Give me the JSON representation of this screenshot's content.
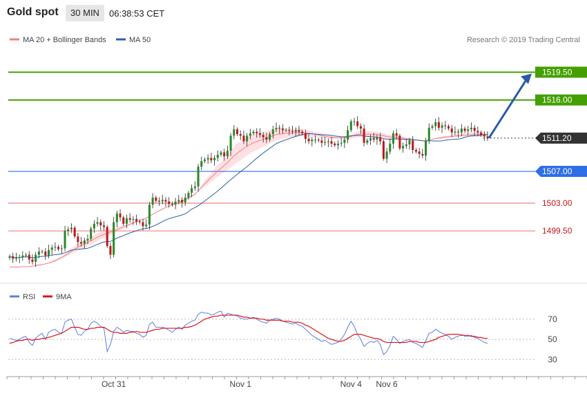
{
  "header": {
    "title": "Gold spot",
    "timeframe": "30 MIN",
    "timestamp": "06:38:53 CET"
  },
  "legend": {
    "ma20": "MA 20 + Bollinger Bands",
    "ma50": "MA 50",
    "copyright": "Research © 2019 Trading Central",
    "ma20_color": "#f08080",
    "ma50_color": "#2a5fa8"
  },
  "rsi_legend": {
    "rsi": "RSI",
    "ma": "9MA",
    "rsi_color": "#5b7fe0",
    "ma_color": "#dd1111"
  },
  "colors": {
    "resistance_green": "#44a000",
    "support_red": "#f08080",
    "pivot_blue": "#2e6ee6",
    "last_price_bg": "#333333",
    "bull": "#2a8a2a",
    "bear": "#c01818",
    "band": "#ffe0e4",
    "arrow": "#2a5aa8"
  },
  "chart_data": {
    "type": "candlestick",
    "y_range": [
      1492.9,
      1523.2
    ],
    "x_labels": [
      "Oct 31",
      "Nov 1",
      "Nov 4",
      "Nov 6"
    ],
    "x_label_index": [
      32,
      71,
      105,
      116
    ],
    "levels": [
      {
        "value": 1519.5,
        "label": "1519.50",
        "kind": "resistance"
      },
      {
        "value": 1516.0,
        "label": "1516.00",
        "kind": "resistance"
      },
      {
        "value": 1511.2,
        "label": "1511.20",
        "kind": "last"
      },
      {
        "value": 1507.0,
        "label": "1507.00",
        "kind": "pivot"
      },
      {
        "value": 1503.0,
        "label": "1503.00",
        "kind": "support"
      },
      {
        "value": 1499.5,
        "label": "1499.50",
        "kind": "support"
      }
    ],
    "close": [
      1496.3,
      1496.0,
      1496.1,
      1496.2,
      1496.4,
      1496.5,
      1495.9,
      1495.6,
      1496.5,
      1496.9,
      1496.9,
      1496.4,
      1497.1,
      1497.4,
      1497.5,
      1497.2,
      1497.3,
      1499.5,
      1499.7,
      1499.9,
      1498.8,
      1498.1,
      1497.9,
      1498.3,
      1498.5,
      1499.8,
      1500.4,
      1500.6,
      1500.2,
      1500.0,
      1497.6,
      1496.5,
      1500.6,
      1501.7,
      1501.2,
      1500.4,
      1501.1,
      1500.9,
      1501.0,
      1500.7,
      1500.6,
      1500.1,
      1500.3,
      1502.8,
      1503.7,
      1503.3,
      1503.2,
      1503.4,
      1503.2,
      1502.9,
      1502.8,
      1503.2,
      1503.4,
      1503.1,
      1503.7,
      1504.3,
      1504.9,
      1505.1,
      1507.6,
      1508.3,
      1508.5,
      1508.7,
      1508.4,
      1508.7,
      1509.1,
      1509.4,
      1508.9,
      1509.6,
      1511.5,
      1512.3,
      1511.7,
      1511.5,
      1510.8,
      1511.5,
      1511.8,
      1512.0,
      1511.8,
      1511.6,
      1511.3,
      1511.0,
      1511.7,
      1512.3,
      1512.5,
      1512.4,
      1512.2,
      1512.2,
      1512.1,
      1512.0,
      1512.2,
      1512.0,
      1511.8,
      1511.1,
      1510.8,
      1511.0,
      1511.0,
      1510.9,
      1510.6,
      1510.7,
      1510.8,
      1510.5,
      1510.3,
      1510.5,
      1510.6,
      1511.0,
      1512.2,
      1513.3,
      1513.3,
      1512.7,
      1512.4,
      1510.6,
      1510.9,
      1511.2,
      1511.0,
      1511.3,
      1510.8,
      1508.6,
      1509.5,
      1510.5,
      1511.8,
      1511.5,
      1509.9,
      1510.2,
      1510.4,
      1510.9,
      1509.7,
      1509.5,
      1509.2,
      1509.0,
      1510.9,
      1512.5,
      1512.7,
      1513.2,
      1512.5,
      1512.8,
      1512.7,
      1512.4,
      1511.9,
      1512.0,
      1511.9,
      1512.4,
      1512.1,
      1512.3,
      1512.5,
      1512.1,
      1511.9,
      1511.6,
      1511.4,
      1511.2
    ],
    "bb_upper": [
      1494.9,
      1494.9,
      1494.9,
      1494.9,
      1495.0,
      1495.0,
      1495.0,
      1495.1,
      1495.2,
      1495.3,
      1495.3,
      1495.4,
      1495.5,
      1495.7,
      1495.9,
      1496.1,
      1496.3,
      1496.6,
      1496.9,
      1497.3,
      1497.6,
      1497.9,
      1498.1,
      1498.3,
      1498.5,
      1498.7,
      1499.0,
      1499.2,
      1499.4,
      1499.5,
      1499.6,
      1499.7,
      1499.8,
      1499.9,
      1500.1,
      1500.2,
      1500.3,
      1500.5,
      1500.6,
      1500.7,
      1500.8,
      1500.9,
      1501.0,
      1501.3,
      1501.6,
      1501.9,
      1502.1,
      1502.3,
      1502.5,
      1502.6,
      1502.8,
      1502.9,
      1503.0,
      1503.1,
      1503.3,
      1503.5,
      1503.8,
      1504.0,
      1504.6,
      1505.2,
      1505.8,
      1506.3,
      1506.8,
      1507.3,
      1507.8,
      1508.2,
      1508.6,
      1509.0,
      1509.6,
      1510.1,
      1510.5,
      1510.8,
      1511.1,
      1511.3,
      1511.5,
      1511.7,
      1511.8,
      1511.9,
      1512.0,
      1512.1,
      1512.2,
      1512.3,
      1512.4,
      1512.4,
      1512.4,
      1512.4,
      1512.4,
      1512.4,
      1512.4,
      1512.4,
      1512.3,
      1512.3,
      1512.2,
      1512.1,
      1512.0,
      1511.9,
      1511.8,
      1511.7,
      1511.6,
      1511.5,
      1511.4,
      1511.4,
      1511.4,
      1511.4,
      1511.5,
      1511.7,
      1511.9,
      1512.0,
      1512.1,
      1512.1,
      1512.1,
      1512.1,
      1512.0,
      1512.0,
      1511.9,
      1511.8,
      1511.7,
      1511.6,
      1511.6,
      1511.6,
      1511.5,
      1511.4,
      1511.3,
      1511.2,
      1511.1,
      1511.0,
      1510.9,
      1510.8,
      1510.8,
      1510.9,
      1511.1,
      1511.2,
      1511.3,
      1511.4,
      1511.5,
      1511.5,
      1511.6,
      1511.6,
      1511.7,
      1511.8,
      1511.8,
      1511.8,
      1511.9,
      1511.9,
      1511.9,
      1511.9,
      1511.9,
      1511.9
    ],
    "bb_lower": [
      1495.0,
      1495.0,
      1495.0,
      1495.0,
      1495.0,
      1495.0,
      1495.0,
      1495.0,
      1495.1,
      1495.1,
      1495.2,
      1495.3,
      1495.4,
      1495.5,
      1495.6,
      1495.8,
      1496.0,
      1496.2,
      1496.4,
      1496.6,
      1496.8,
      1497.0,
      1497.2,
      1497.4,
      1497.6,
      1497.8,
      1498.0,
      1498.2,
      1498.4,
      1498.6,
      1498.8,
      1499.0,
      1499.2,
      1499.4,
      1499.6,
      1499.8,
      1500.0,
      1500.2,
      1500.4,
      1500.6,
      1500.8,
      1501.0,
      1501.2,
      1501.4,
      1501.6,
      1501.8,
      1502.0,
      1502.2,
      1502.4,
      1502.6,
      1502.8,
      1503.0,
      1503.2,
      1503.4,
      1503.6,
      1503.8,
      1504.0,
      1504.2,
      1504.5,
      1504.8,
      1505.1,
      1505.4,
      1505.7,
      1506.0,
      1506.3,
      1506.6,
      1506.9,
      1507.2,
      1507.5,
      1507.8,
      1508.1,
      1508.4,
      1508.7,
      1509.0,
      1509.3,
      1509.5,
      1509.7,
      1509.9,
      1510.1,
      1510.3,
      1510.5,
      1510.7,
      1510.9,
      1511.0,
      1511.1,
      1511.2,
      1511.3,
      1511.3,
      1511.4,
      1511.4,
      1511.4,
      1511.4,
      1511.4,
      1511.4,
      1511.3,
      1511.3,
      1511.2,
      1511.2,
      1511.1,
      1511.1,
      1511.1,
      1511.1,
      1511.1,
      1511.1,
      1511.1,
      1511.1,
      1511.2,
      1511.3,
      1511.3,
      1511.3,
      1511.3,
      1511.3,
      1511.3,
      1511.3,
      1511.2,
      1511.2,
      1511.1,
      1511.1,
      1511.0,
      1511.0,
      1511.0,
      1511.0,
      1510.9,
      1510.9,
      1510.9,
      1510.9,
      1510.9,
      1510.9,
      1510.9,
      1511.0,
      1511.0,
      1511.1,
      1511.1,
      1511.1,
      1511.2,
      1511.2,
      1511.2,
      1511.3,
      1511.3,
      1511.3,
      1511.3,
      1511.3,
      1511.3,
      1511.4,
      1511.4,
      1511.4,
      1511.4,
      1511.4
    ],
    "rsi": [
      51,
      50,
      49,
      50,
      52,
      53,
      47,
      44,
      51,
      54,
      56,
      50,
      57,
      59,
      60,
      57,
      56,
      67,
      69,
      70,
      62,
      55,
      54,
      58,
      60,
      66,
      68,
      66,
      63,
      61,
      38,
      45,
      58,
      62,
      60,
      57,
      59,
      58,
      58,
      56,
      55,
      52,
      54,
      65,
      67,
      62,
      62,
      62,
      61,
      59,
      57,
      60,
      62,
      60,
      64,
      66,
      68,
      69,
      75,
      77,
      76,
      76,
      74,
      75,
      77,
      78,
      72,
      76,
      75,
      74,
      73,
      71,
      70,
      70,
      71,
      72,
      70,
      68,
      67,
      66,
      69,
      70,
      71,
      70,
      68,
      67,
      66,
      65,
      66,
      64,
      63,
      60,
      57,
      54,
      52,
      50,
      48,
      49,
      47,
      45,
      46,
      47,
      50,
      55,
      62,
      68,
      63,
      55,
      50,
      43,
      46,
      48,
      47,
      49,
      45,
      35,
      38,
      44,
      53,
      50,
      46,
      48,
      49,
      50,
      47,
      46,
      44,
      42,
      49,
      56,
      57,
      60,
      58,
      56,
      55,
      53,
      50,
      52,
      53,
      55,
      53,
      53,
      54,
      52,
      51,
      49,
      47,
      46
    ],
    "rsi_ma": [
      46,
      47,
      48,
      49,
      49,
      50,
      50,
      49,
      50,
      50,
      51,
      51,
      52,
      53,
      54,
      55,
      56,
      58,
      60,
      62,
      62,
      62,
      61,
      60,
      60,
      61,
      61,
      62,
      62,
      62,
      60,
      58,
      57,
      57,
      56,
      56,
      56,
      57,
      57,
      58,
      57,
      57,
      57,
      58,
      59,
      60,
      60,
      61,
      61,
      61,
      61,
      61,
      61,
      61,
      62,
      62,
      63,
      64,
      66,
      68,
      70,
      71,
      72,
      73,
      73,
      74,
      74,
      74,
      74,
      74,
      74,
      73,
      72,
      72,
      71,
      71,
      71,
      70,
      70,
      69,
      69,
      69,
      69,
      69,
      68,
      68,
      68,
      67,
      67,
      67,
      66,
      64,
      63,
      61,
      59,
      57,
      55,
      53,
      51,
      50,
      49,
      48,
      48,
      49,
      51,
      53,
      55,
      55,
      55,
      54,
      53,
      52,
      51,
      51,
      50,
      48,
      47,
      47,
      47,
      47,
      47,
      47,
      47,
      48,
      48,
      48,
      47,
      47,
      47,
      48,
      49,
      50,
      52,
      53,
      54,
      55,
      55,
      55,
      55,
      54,
      54,
      54,
      53,
      53,
      52,
      52,
      51,
      51
    ],
    "rsi_levels": [
      70,
      50,
      30
    ]
  }
}
